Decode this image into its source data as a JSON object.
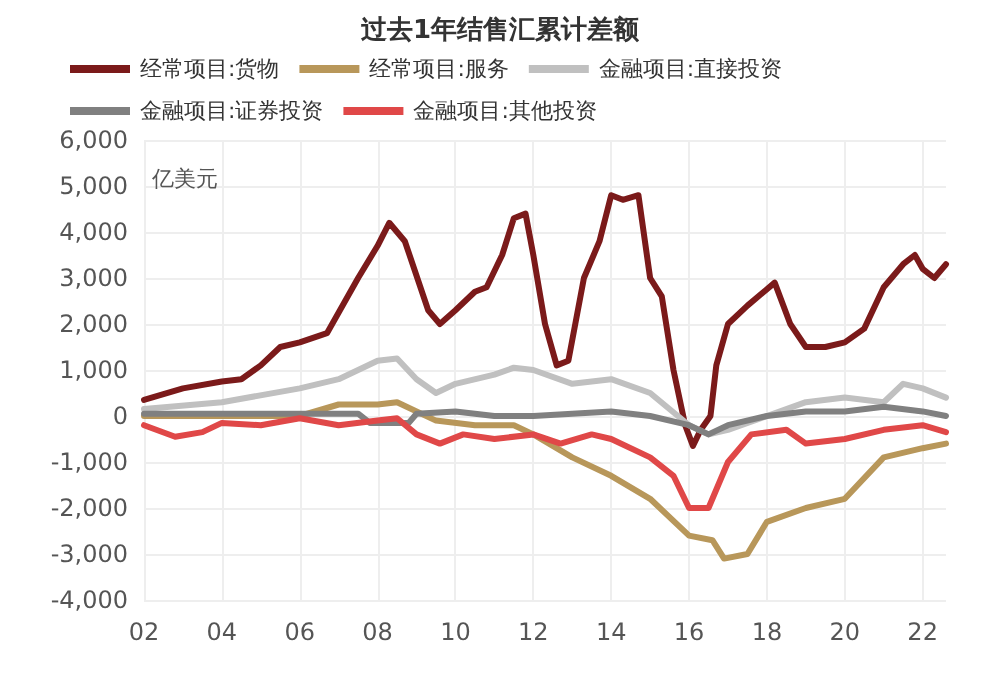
{
  "chart_data": {
    "type": "line",
    "title": "过去1年结售汇累计差额",
    "ylabel": "亿美元",
    "xlim": [
      2002,
      2022.6
    ],
    "xticks": [
      {
        "value": 2002,
        "label": "02"
      },
      {
        "value": 2004,
        "label": "04"
      },
      {
        "value": 2006,
        "label": "06"
      },
      {
        "value": 2008,
        "label": "08"
      },
      {
        "value": 2010,
        "label": "10"
      },
      {
        "value": 2012,
        "label": "12"
      },
      {
        "value": 2014,
        "label": "14"
      },
      {
        "value": 2016,
        "label": "16"
      },
      {
        "value": 2018,
        "label": "18"
      },
      {
        "value": 2020,
        "label": "20"
      },
      {
        "value": 2022,
        "label": "22"
      }
    ],
    "ylim": [
      -4000,
      6000
    ],
    "yticks": [
      {
        "value": -4000,
        "label": "-4,000"
      },
      {
        "value": -3000,
        "label": "-3,000"
      },
      {
        "value": -2000,
        "label": "-2,000"
      },
      {
        "value": -1000,
        "label": "-1,000"
      },
      {
        "value": 0,
        "label": "0"
      },
      {
        "value": 1000,
        "label": "1,000"
      },
      {
        "value": 2000,
        "label": "2,000"
      },
      {
        "value": 3000,
        "label": "3,000"
      },
      {
        "value": 4000,
        "label": "4,000"
      },
      {
        "value": 5000,
        "label": "5,000"
      },
      {
        "value": 6000,
        "label": "6,000"
      }
    ],
    "grid": true,
    "legend": "top left",
    "marker": "none",
    "line_style": "solid",
    "series": [
      {
        "name": "经常项目:货物",
        "color": "#7b1a1a",
        "x": [
          2002,
          2003,
          2004,
          2004.5,
          2005,
          2005.5,
          2006,
          2006.7,
          2007.5,
          2008,
          2008.3,
          2008.7,
          2009.3,
          2009.6,
          2010,
          2010.5,
          2010.8,
          2011.2,
          2011.5,
          2011.8,
          2012,
          2012.3,
          2012.6,
          2012.9,
          2013.3,
          2013.7,
          2014,
          2014.3,
          2014.7,
          2015,
          2015.3,
          2015.6,
          2015.9,
          2016.1,
          2016.3,
          2016.55,
          2016.7,
          2017,
          2017.5,
          2018.2,
          2018.6,
          2019,
          2019.5,
          2020,
          2020.5,
          2021,
          2021.5,
          2021.8,
          2022,
          2022.3,
          2022.6
        ],
        "values": [
          350,
          600,
          750,
          800,
          1100,
          1500,
          1600,
          1800,
          3000,
          3700,
          4200,
          3800,
          2300,
          2000,
          2300,
          2700,
          2800,
          3500,
          4300,
          4400,
          3500,
          2000,
          1100,
          1200,
          3000,
          3800,
          4800,
          4700,
          4800,
          3000,
          2600,
          1000,
          -200,
          -650,
          -300,
          0,
          1100,
          2000,
          2400,
          2900,
          2000,
          1500,
          1500,
          1600,
          1900,
          2800,
          3300,
          3500,
          3200,
          3000,
          3300
        ]
      },
      {
        "name": "经常项目:服务",
        "color": "#b8975a",
        "x": [
          2002,
          2004,
          2006,
          2007,
          2008,
          2008.5,
          2009.5,
          2010.5,
          2011.5,
          2012,
          2013,
          2014,
          2015,
          2016,
          2016.6,
          2016.9,
          2017.5,
          2018,
          2019,
          2020,
          2021,
          2022,
          2022.6
        ],
        "values": [
          0,
          0,
          0,
          250,
          250,
          300,
          -100,
          -200,
          -200,
          -400,
          -900,
          -1300,
          -1800,
          -2600,
          -2700,
          -3100,
          -3000,
          -2300,
          -2000,
          -1800,
          -900,
          -700,
          -600
        ]
      },
      {
        "name": "金融项目:直接投资",
        "color": "#c0c0c0",
        "x": [
          2002,
          2004,
          2006,
          2007,
          2008,
          2008.5,
          2009,
          2009.5,
          2010,
          2011,
          2011.5,
          2012,
          2013,
          2014,
          2015,
          2016,
          2016.5,
          2017,
          2018,
          2019,
          2020,
          2021,
          2021.5,
          2022,
          2022.6
        ],
        "values": [
          150,
          300,
          600,
          800,
          1200,
          1250,
          800,
          500,
          700,
          900,
          1050,
          1000,
          700,
          800,
          500,
          -200,
          -400,
          -300,
          0,
          300,
          400,
          300,
          700,
          600,
          400
        ]
      },
      {
        "name": "金融项目:证券投资",
        "color": "#808080",
        "x": [
          2002,
          2007.5,
          2007.8,
          2008.8,
          2009,
          2010,
          2011,
          2012,
          2013,
          2014,
          2015,
          2016,
          2016.5,
          2017,
          2018,
          2019,
          2020,
          2021,
          2022,
          2022.6
        ],
        "values": [
          50,
          50,
          -150,
          -150,
          50,
          100,
          0,
          0,
          50,
          100,
          0,
          -200,
          -400,
          -200,
          0,
          100,
          100,
          200,
          100,
          0
        ]
      },
      {
        "name": "金融项目:其他投资",
        "color": "#e04848",
        "x": [
          2002,
          2002.8,
          2003.5,
          2004,
          2005,
          2006,
          2007,
          2008,
          2008.5,
          2009,
          2009.6,
          2010.2,
          2011,
          2012,
          2012.7,
          2013.5,
          2014,
          2015,
          2015.6,
          2016,
          2016.5,
          2017,
          2017.6,
          2018.5,
          2019,
          2020,
          2021,
          2022,
          2022.6
        ],
        "values": [
          -200,
          -450,
          -350,
          -150,
          -200,
          -50,
          -200,
          -100,
          -50,
          -400,
          -600,
          -400,
          -500,
          -400,
          -600,
          -400,
          -500,
          -900,
          -1300,
          -2000,
          -2000,
          -1000,
          -400,
          -300,
          -600,
          -500,
          -300,
          -200,
          -350
        ]
      }
    ]
  }
}
